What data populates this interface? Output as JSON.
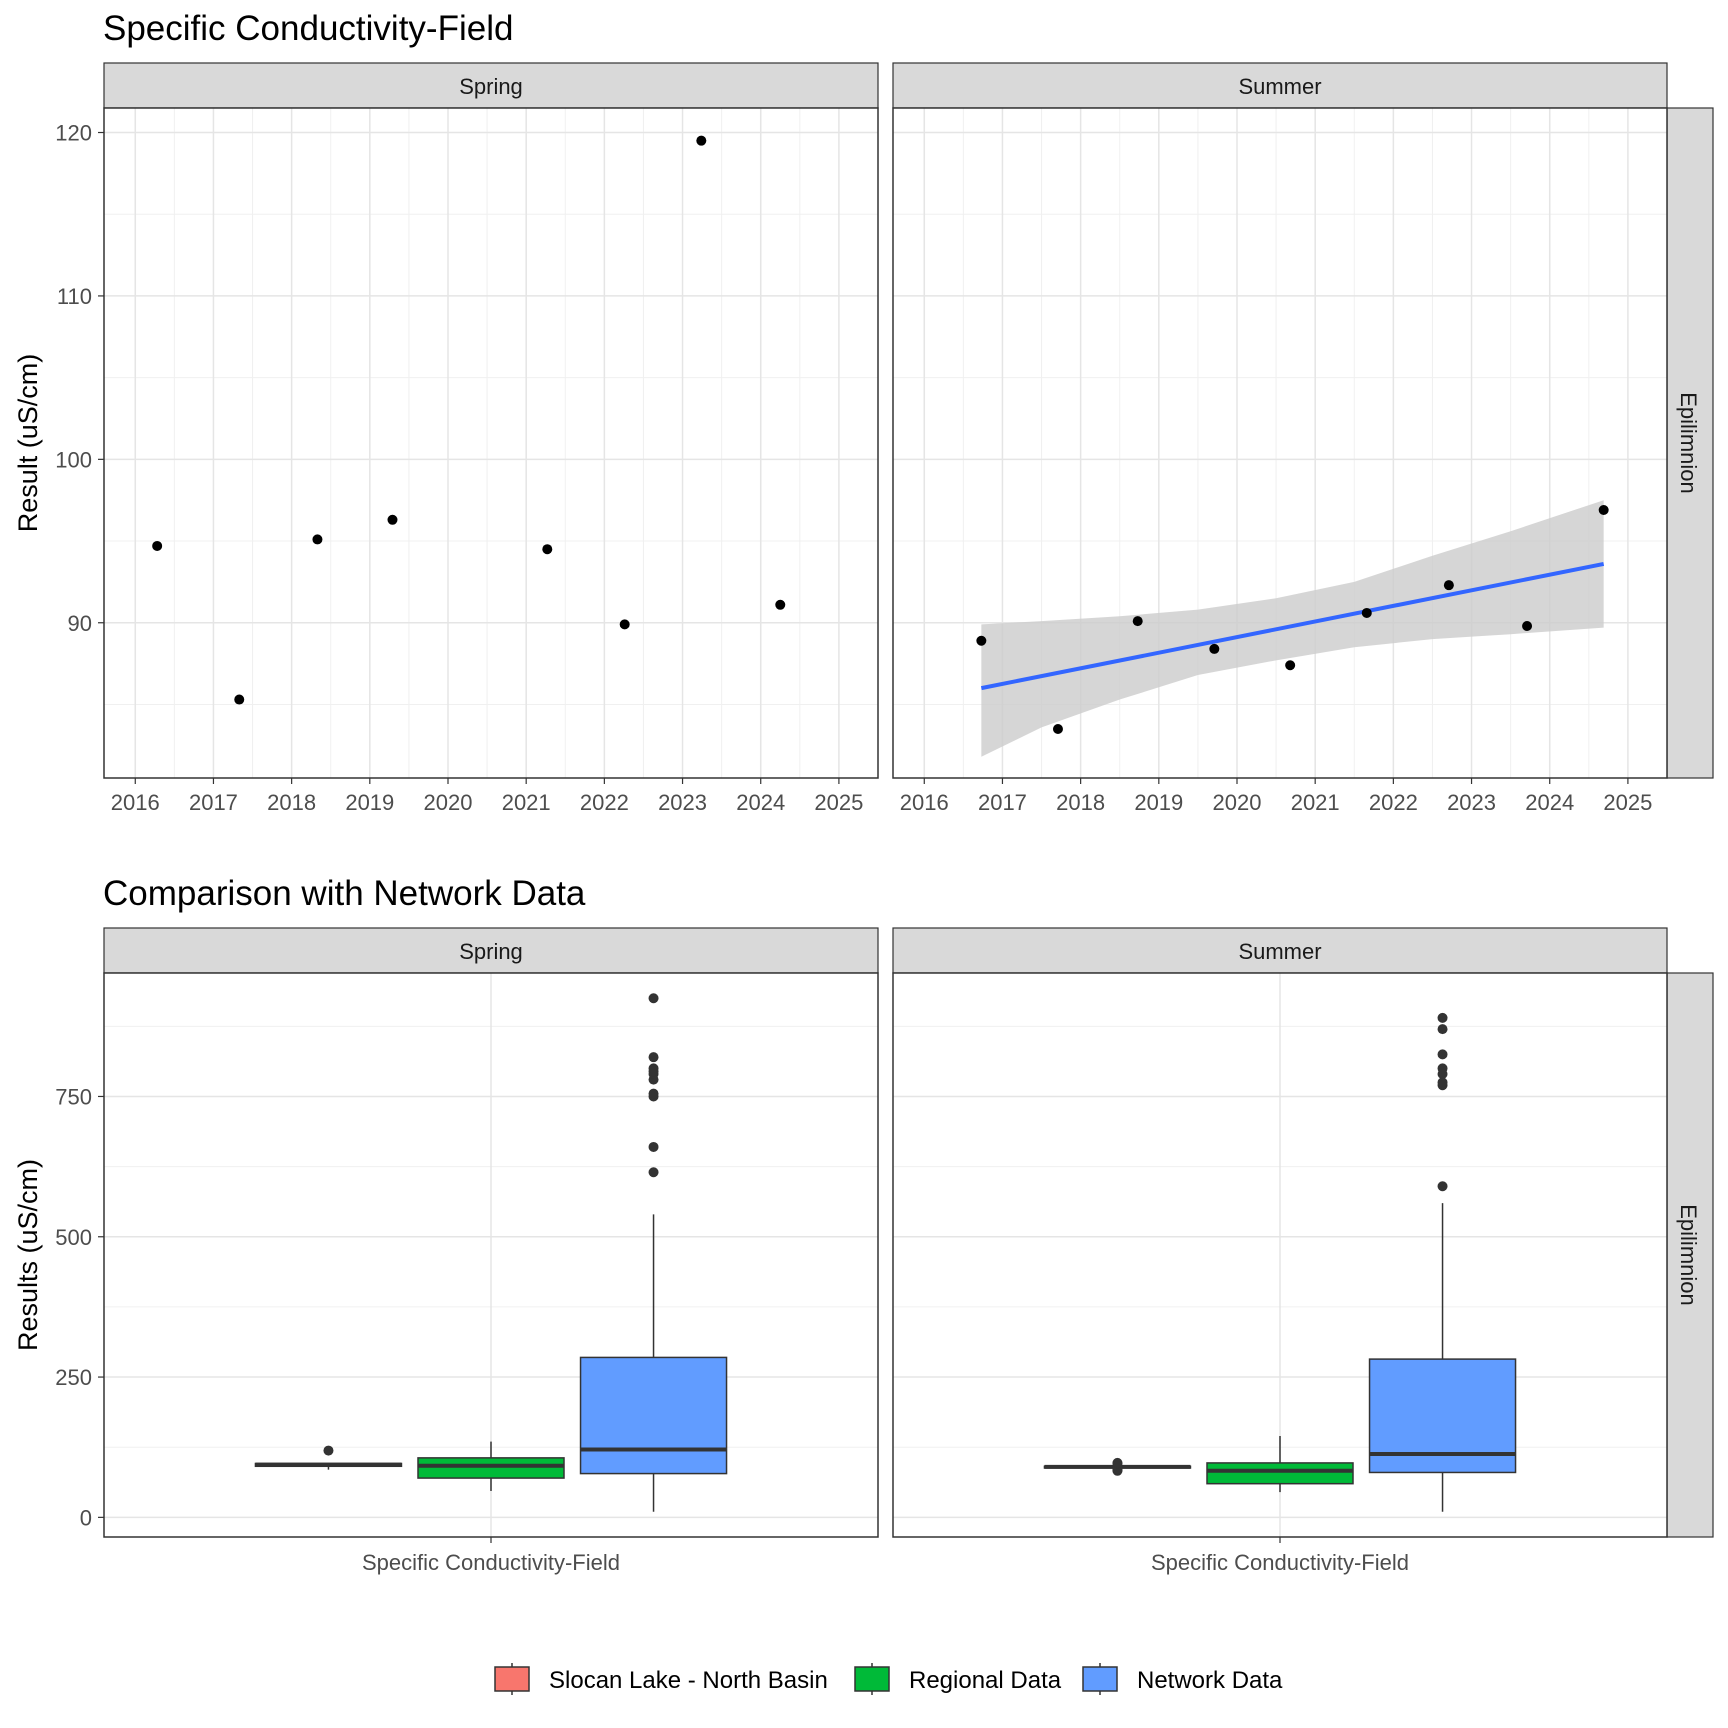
{
  "chart_data": [
    {
      "type": "scatter",
      "title": "Specific Conductivity-Field",
      "ylabel": "Result (uS/cm)",
      "xlabel": "",
      "x_ticks": [
        "2016",
        "2017",
        "2018",
        "2019",
        "2020",
        "2021",
        "2022",
        "2023",
        "2024",
        "2025"
      ],
      "y_ticks": [
        "90",
        "100",
        "110",
        "120"
      ],
      "xlim": [
        2015.6,
        2025.5
      ],
      "ylim": [
        80.5,
        121.5
      ],
      "grid": true,
      "row_strip": "Epilimnion",
      "panels": [
        {
          "facet": "Spring",
          "points": [
            {
              "x": 2016.28,
              "y": 94.7
            },
            {
              "x": 2017.33,
              "y": 85.3
            },
            {
              "x": 2018.33,
              "y": 95.1
            },
            {
              "x": 2019.29,
              "y": 96.3
            },
            {
              "x": 2021.27,
              "y": 94.5
            },
            {
              "x": 2022.26,
              "y": 89.9
            },
            {
              "x": 2023.24,
              "y": 119.5
            },
            {
              "x": 2024.25,
              "y": 91.1
            }
          ],
          "trend": null
        },
        {
          "facet": "Summer",
          "points": [
            {
              "x": 2016.73,
              "y": 88.9
            },
            {
              "x": 2017.71,
              "y": 83.5
            },
            {
              "x": 2018.73,
              "y": 90.1
            },
            {
              "x": 2019.71,
              "y": 88.4
            },
            {
              "x": 2020.68,
              "y": 87.4
            },
            {
              "x": 2021.66,
              "y": 90.6
            },
            {
              "x": 2022.71,
              "y": 92.3
            },
            {
              "x": 2023.71,
              "y": 89.8
            },
            {
              "x": 2024.69,
              "y": 96.9
            }
          ],
          "trend": {
            "x": [
              2016.73,
              2024.69
            ],
            "y": [
              86.0,
              93.6
            ],
            "band_x": [
              2016.73,
              2017.5,
              2018.5,
              2019.5,
              2020.5,
              2021.5,
              2022.5,
              2023.5,
              2024.69
            ],
            "band_lower": [
              81.8,
              83.6,
              85.3,
              86.8,
              87.7,
              88.5,
              89.0,
              89.3,
              89.7
            ],
            "band_upper": [
              89.9,
              90.1,
              90.4,
              90.8,
              91.5,
              92.5,
              94.1,
              95.6,
              97.5
            ],
            "color": "#3366FF",
            "band_color": "#CCCCCC"
          }
        }
      ]
    },
    {
      "type": "box",
      "title": "Comparison with Network Data",
      "ylabel": "Results (uS/cm)",
      "x_tick": "Specific Conductivity-Field",
      "y_ticks": [
        "0",
        "250",
        "500",
        "750"
      ],
      "ylim": [
        -35,
        970
      ],
      "grid": true,
      "row_strip": "Epilimnion",
      "legend_position": "bottom",
      "series_colors": {
        "Slocan Lake - North Basin": "#F8766D",
        "Regional Data": "#00BA38",
        "Network Data": "#619CFF"
      },
      "panels": [
        {
          "facet": "Spring",
          "boxes": [
            {
              "group": "Slocan Lake - North Basin",
              "q1": 91,
              "median": 94,
              "q3": 96,
              "whisker_low": 85,
              "whisker_high": 97,
              "outliers": [
                119
              ]
            },
            {
              "group": "Regional Data",
              "q1": 70,
              "median": 92,
              "q3": 106,
              "whisker_low": 47,
              "whisker_high": 135,
              "outliers": []
            },
            {
              "group": "Network Data",
              "q1": 78,
              "median": 121,
              "q3": 285,
              "whisker_low": 10,
              "whisker_high": 540,
              "outliers": [
                615,
                660,
                750,
                755,
                780,
                790,
                795,
                800,
                820,
                925
              ]
            }
          ]
        },
        {
          "facet": "Summer",
          "boxes": [
            {
              "group": "Slocan Lake - North Basin",
              "q1": 88,
              "median": 90,
              "q3": 91,
              "whisker_low": 88,
              "whisker_high": 92,
              "outliers": [
                83,
                84,
                86,
                96,
                97
              ]
            },
            {
              "group": "Regional Data",
              "q1": 60,
              "median": 83,
              "q3": 97,
              "whisker_low": 45,
              "whisker_high": 145,
              "outliers": []
            },
            {
              "group": "Network Data",
              "q1": 80,
              "median": 113,
              "q3": 282,
              "whisker_low": 10,
              "whisker_high": 560,
              "outliers": [
                590,
                770,
                775,
                790,
                800,
                825,
                870,
                890
              ]
            }
          ]
        }
      ]
    }
  ],
  "legend": {
    "items": [
      {
        "label": "Slocan Lake - North Basin",
        "color": "#F8766D"
      },
      {
        "label": "Regional Data",
        "color": "#00BA38"
      },
      {
        "label": "Network Data",
        "color": "#619CFF"
      }
    ]
  }
}
